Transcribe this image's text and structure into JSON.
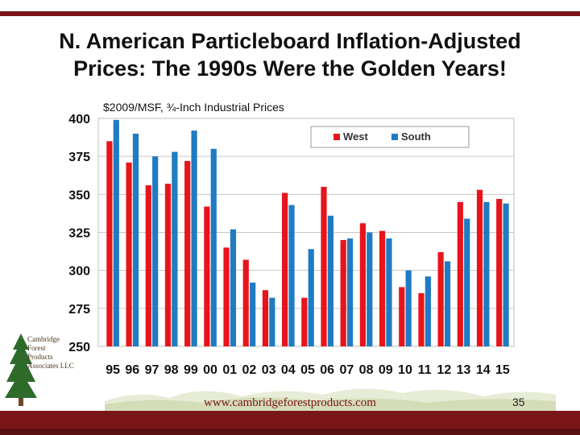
{
  "slide": {
    "title_line1": "N. American Particleboard Inflation-Adjusted",
    "title_line2": "Prices: The 1990s Were the Golden Years!",
    "url": "www.cambridgeforestproducts.com",
    "page_number": "35"
  },
  "logo": {
    "lines": [
      "Cambridge",
      "Forest",
      "Products",
      "Associates LLC"
    ]
  },
  "colors": {
    "brand": "#7a1518",
    "west": "#e8141b",
    "south": "#1f7bc2"
  },
  "chart_data": {
    "type": "bar",
    "title": "$2009/MSF, ¾-Inch Industrial Prices",
    "xlabel": "",
    "ylabel": "",
    "ylim": [
      250,
      400
    ],
    "yticks": [
      250,
      275,
      300,
      325,
      350,
      375,
      400
    ],
    "grid": true,
    "legend": "top-right",
    "categories": [
      "95",
      "96",
      "97",
      "98",
      "99",
      "00",
      "01",
      "02",
      "03",
      "04",
      "05",
      "06",
      "07",
      "08",
      "09",
      "10",
      "11",
      "12",
      "13",
      "14",
      "15"
    ],
    "series": [
      {
        "name": "West",
        "color": "#e8141b",
        "values": [
          385,
          371,
          356,
          357,
          372,
          342,
          315,
          307,
          287,
          351,
          282,
          355,
          320,
          331,
          326,
          289,
          285,
          312,
          345,
          353,
          347
        ]
      },
      {
        "name": "South",
        "color": "#1f7bc2",
        "values": [
          399,
          390,
          375,
          378,
          392,
          380,
          327,
          292,
          282,
          343,
          314,
          336,
          321,
          325,
          321,
          300,
          296,
          306,
          334,
          345,
          344
        ]
      }
    ]
  }
}
